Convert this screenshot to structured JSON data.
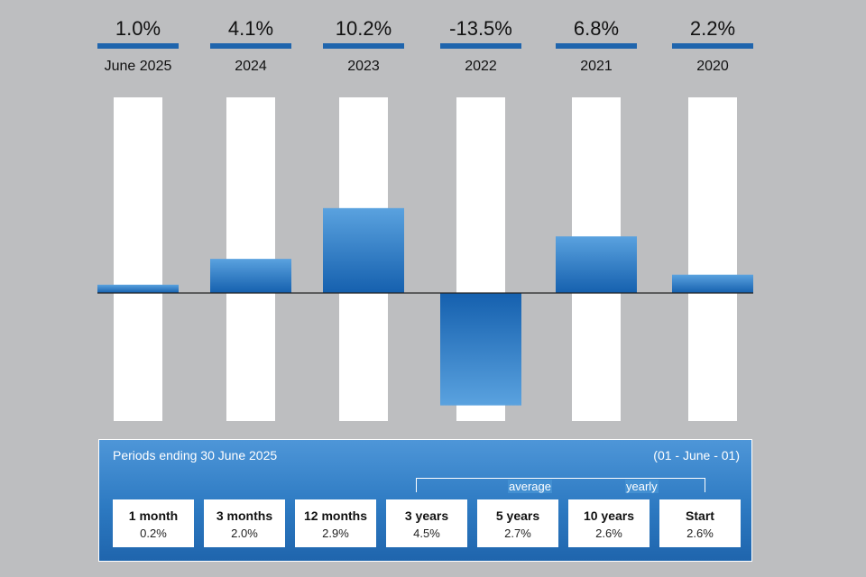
{
  "chart_data": {
    "type": "bar",
    "categories": [
      "June 2025",
      "2024",
      "2023",
      "2022",
      "2021",
      "2020"
    ],
    "values": [
      1.0,
      4.1,
      10.2,
      -13.5,
      6.8,
      2.2
    ],
    "value_labels": [
      "1.0%",
      "4.1%",
      "10.2%",
      "-13.5%",
      "6.8%",
      "2.2%"
    ],
    "ylim": [
      -15.5,
      23.5
    ],
    "grid": false,
    "colors": {
      "bar_top": "#5aa2df",
      "bar_bottom": "#1560ae",
      "header_underline": "#1f65ad",
      "track": "#ffffff",
      "zero_line": "#222222"
    }
  },
  "periods": {
    "title": "Periods ending 30 June 2025",
    "date_code": "(01 - June - 01)",
    "average_label": "average",
    "yearly_label": "yearly",
    "items": [
      {
        "label": "1 month",
        "value": "0.2%"
      },
      {
        "label": "3 months",
        "value": "2.0%"
      },
      {
        "label": "12 months",
        "value": "2.9%"
      },
      {
        "label": "3 years",
        "value": "4.5%"
      },
      {
        "label": "5 years",
        "value": "2.7%"
      },
      {
        "label": "10 years",
        "value": "2.6%"
      },
      {
        "label": "Start",
        "value": "2.6%"
      }
    ]
  }
}
